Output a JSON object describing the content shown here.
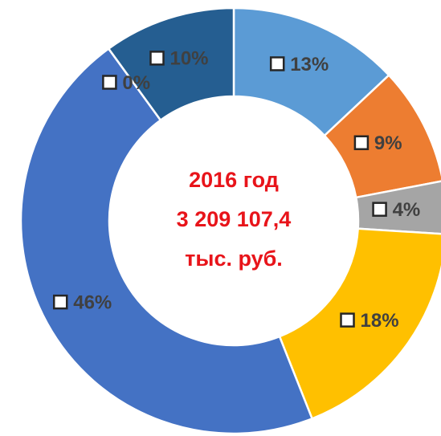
{
  "chart_data": {
    "type": "donut",
    "center_text": [
      "2016 год",
      "3 209 107,4",
      "тыс. руб."
    ],
    "values": [
      13,
      9,
      4,
      18,
      46,
      0,
      10
    ],
    "value_labels": [
      "13%",
      "9%",
      "4%",
      "18%",
      "46%",
      "0%",
      "10%"
    ],
    "colors": [
      "#5b9bd5",
      "#ed7d31",
      "#a5a5a5",
      "#ffc000",
      "#4472c4",
      "#70ad47",
      "#255e91"
    ]
  }
}
